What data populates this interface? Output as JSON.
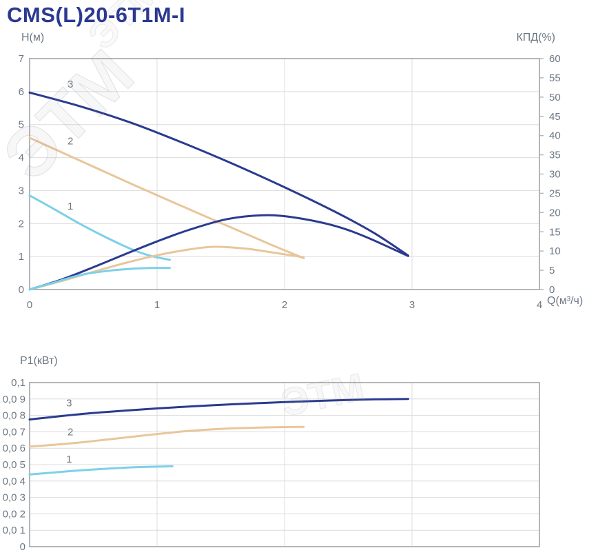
{
  "title": "CMS(L)20-6T1M-I",
  "watermark_text": "ЭТМ",
  "colors": {
    "title_blue": "#2b3990",
    "curve_blue": "#2a3b8f",
    "curve_tan": "#e8c69b",
    "curve_cyan": "#7dd0e8",
    "tick_text": "#6e7884",
    "grid": "#dcdcdc",
    "border": "#b3b6ba"
  },
  "chart_data": [
    {
      "id": "head-and-efficiency",
      "type": "line",
      "y_left_label": "H(м)",
      "y_right_label": "КПД(%)",
      "x_label": "Q(м³/ч)",
      "x_range": [
        0,
        4
      ],
      "y_left_range": [
        0,
        7
      ],
      "y_right_range": [
        0,
        60
      ],
      "grid": "on",
      "x_ticks": [
        0,
        1,
        2,
        3,
        4
      ],
      "x_tick_labels": [
        "0",
        "1",
        "2",
        "3",
        "4"
      ],
      "y_left_ticks": [
        0,
        1,
        2,
        3,
        4,
        5,
        6,
        7
      ],
      "y_left_tick_labels": [
        "0",
        "1",
        "2",
        "3",
        "4",
        "5",
        "6",
        "7"
      ],
      "y_right_ticks": [
        0,
        5,
        10,
        15,
        20,
        25,
        30,
        35,
        40,
        45,
        50,
        55,
        60
      ],
      "y_right_tick_labels": [
        "0",
        "5",
        "10",
        "15",
        "20",
        "25",
        "30",
        "35",
        "40",
        "45",
        "50",
        "55",
        "60"
      ],
      "series": [
        {
          "name": "curve-3-head",
          "curve": "3",
          "axis": "left",
          "unit": "м",
          "color_key": "curve_blue",
          "points": [
            [
              0,
              5.97
            ],
            [
              0.4,
              5.55
            ],
            [
              0.8,
              5.05
            ],
            [
              1.2,
              4.45
            ],
            [
              1.6,
              3.8
            ],
            [
              2.0,
              3.1
            ],
            [
              2.4,
              2.35
            ],
            [
              2.7,
              1.72
            ],
            [
              2.97,
              1.03
            ]
          ]
        },
        {
          "name": "curve-2-head",
          "curve": "2",
          "axis": "left",
          "unit": "м",
          "color_key": "curve_tan",
          "points": [
            [
              0,
              4.6
            ],
            [
              0.4,
              3.9
            ],
            [
              0.8,
              3.2
            ],
            [
              1.2,
              2.52
            ],
            [
              1.6,
              1.85
            ],
            [
              1.9,
              1.35
            ],
            [
              2.15,
              0.95
            ]
          ]
        },
        {
          "name": "curve-1-head",
          "curve": "1",
          "axis": "left",
          "unit": "м",
          "color_key": "curve_cyan",
          "points": [
            [
              0,
              2.85
            ],
            [
              0.2,
              2.42
            ],
            [
              0.4,
              1.98
            ],
            [
              0.6,
              1.58
            ],
            [
              0.8,
              1.22
            ],
            [
              0.95,
              1.02
            ],
            [
              1.1,
              0.9
            ]
          ]
        },
        {
          "name": "curve-3-efficiency",
          "curve": "3",
          "axis": "right",
          "unit": "%",
          "color_key": "curve_blue",
          "points": [
            [
              0,
              0
            ],
            [
              0.25,
              2.6
            ],
            [
              0.5,
              5.8
            ],
            [
              0.75,
              9.2
            ],
            [
              1.0,
              12.5
            ],
            [
              1.25,
              15.5
            ],
            [
              1.55,
              18.3
            ],
            [
              1.85,
              19.3
            ],
            [
              2.1,
              18.6
            ],
            [
              2.4,
              16.5
            ],
            [
              2.65,
              13.5
            ],
            [
              2.97,
              8.7
            ]
          ]
        },
        {
          "name": "curve-2-efficiency",
          "curve": "2",
          "axis": "right",
          "unit": "%",
          "color_key": "curve_tan",
          "points": [
            [
              0,
              0
            ],
            [
              0.25,
              2.2
            ],
            [
              0.5,
              4.6
            ],
            [
              0.75,
              6.9
            ],
            [
              1.0,
              8.9
            ],
            [
              1.25,
              10.4
            ],
            [
              1.45,
              11.1
            ],
            [
              1.7,
              10.6
            ],
            [
              1.95,
              9.4
            ],
            [
              2.15,
              8.4
            ]
          ]
        },
        {
          "name": "curve-1-efficiency",
          "curve": "1",
          "axis": "right",
          "unit": "%",
          "color_key": "curve_cyan",
          "points": [
            [
              0,
              0
            ],
            [
              0.2,
              1.9
            ],
            [
              0.4,
              3.8
            ],
            [
              0.6,
              4.8
            ],
            [
              0.8,
              5.4
            ],
            [
              0.95,
              5.6
            ],
            [
              1.1,
              5.6
            ]
          ]
        }
      ],
      "curve_labels": [
        {
          "text": "3",
          "x": 0.32,
          "y": 6.12
        },
        {
          "text": "2",
          "x": 0.32,
          "y": 4.4
        },
        {
          "text": "1",
          "x": 0.32,
          "y": 2.42
        }
      ]
    },
    {
      "id": "power",
      "type": "line",
      "y_left_label": "P1(кВт)",
      "x_range": [
        0,
        4
      ],
      "y_range": [
        0,
        0.1
      ],
      "grid": "on",
      "x_ticks": [
        0,
        1,
        2,
        3,
        4
      ],
      "x_tick_labels": [],
      "y_ticks": [
        0,
        0.01,
        0.02,
        0.03,
        0.04,
        0.05,
        0.06,
        0.07,
        0.08,
        0.09,
        0.1
      ],
      "y_tick_labels": [
        "0",
        "0,0 1",
        "0,0 2",
        "0,0 3",
        "0,0 4",
        "0,0 5",
        "0,0 6",
        "0,0 7",
        "0,0 8",
        "0,0 9",
        "0,1"
      ],
      "series": [
        {
          "name": "curve-3-power",
          "curve": "3",
          "unit": "кВт",
          "color_key": "curve_blue",
          "points": [
            [
              0,
              0.0775
            ],
            [
              0.4,
              0.0808
            ],
            [
              0.8,
              0.0832
            ],
            [
              1.2,
              0.0852
            ],
            [
              1.6,
              0.0868
            ],
            [
              2.0,
              0.0881
            ],
            [
              2.4,
              0.0892
            ],
            [
              2.7,
              0.0898
            ],
            [
              2.97,
              0.09
            ]
          ]
        },
        {
          "name": "curve-2-power",
          "curve": "2",
          "unit": "кВт",
          "color_key": "curve_tan",
          "points": [
            [
              0,
              0.061
            ],
            [
              0.3,
              0.0628
            ],
            [
              0.6,
              0.0652
            ],
            [
              0.9,
              0.0678
            ],
            [
              1.2,
              0.0702
            ],
            [
              1.5,
              0.0718
            ],
            [
              1.8,
              0.0726
            ],
            [
              2.0,
              0.0729
            ],
            [
              2.15,
              0.073
            ]
          ]
        },
        {
          "name": "curve-1-power",
          "curve": "1",
          "unit": "кВт",
          "color_key": "curve_cyan",
          "points": [
            [
              0,
              0.044
            ],
            [
              0.2,
              0.0453
            ],
            [
              0.4,
              0.0465
            ],
            [
              0.6,
              0.0475
            ],
            [
              0.8,
              0.0483
            ],
            [
              1.0,
              0.0488
            ],
            [
              1.12,
              0.049
            ]
          ]
        }
      ],
      "curve_labels": [
        {
          "text": "3",
          "x": 0.31,
          "y": 0.0855
        },
        {
          "text": "2",
          "x": 0.32,
          "y": 0.0678
        },
        {
          "text": "1",
          "x": 0.31,
          "y": 0.0512
        }
      ]
    }
  ]
}
